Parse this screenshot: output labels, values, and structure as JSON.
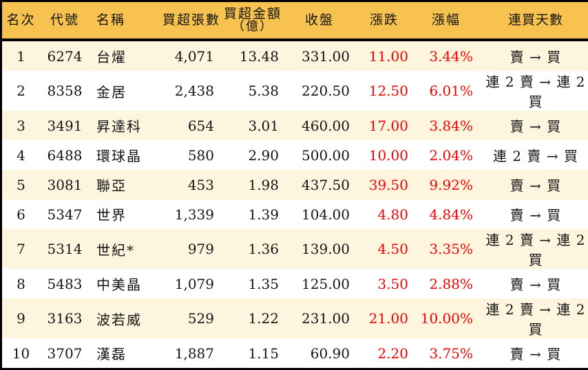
{
  "colors": {
    "header_bg": "#F7C24F",
    "row_alt_bg": "#FDF5DE",
    "row_bg": "#FFFFFF",
    "border": "#000000",
    "text": "#141414",
    "up_red": "#F40000"
  },
  "chart_data": {
    "type": "table",
    "title": "",
    "columns": [
      {
        "key": "rank",
        "label": "名次"
      },
      {
        "key": "code",
        "label": "代號"
      },
      {
        "key": "name",
        "label": "名稱"
      },
      {
        "key": "net_buy_volume",
        "label": "買超張數"
      },
      {
        "key": "net_buy_amount",
        "label": "買超金額",
        "sub": "（億）"
      },
      {
        "key": "close",
        "label": "收盤"
      },
      {
        "key": "change",
        "label": "漲跌"
      },
      {
        "key": "change_pct",
        "label": "漲幅"
      },
      {
        "key": "streak",
        "label": "連買天數"
      }
    ],
    "rows": [
      [
        "1",
        "6274",
        "台燿",
        "4,071",
        "13.48",
        "331.00",
        "11.00",
        "3.44%",
        "賣 → 買"
      ],
      [
        "2",
        "8358",
        "金居",
        "2,438",
        "5.38",
        "220.50",
        "12.50",
        "6.01%",
        "連 2 賣 → 連 2 買"
      ],
      [
        "3",
        "3491",
        "昇達科",
        "654",
        "3.01",
        "460.00",
        "17.00",
        "3.84%",
        "賣 → 買"
      ],
      [
        "4",
        "6488",
        "環球晶",
        "580",
        "2.90",
        "500.00",
        "10.00",
        "2.04%",
        "連 2 賣 → 買"
      ],
      [
        "5",
        "3081",
        "聯亞",
        "453",
        "1.98",
        "437.50",
        "39.50",
        "9.92%",
        "賣 → 買"
      ],
      [
        "6",
        "5347",
        "世界",
        "1,339",
        "1.39",
        "104.00",
        "4.80",
        "4.84%",
        "賣 → 買"
      ],
      [
        "7",
        "5314",
        "世紀*",
        "979",
        "1.36",
        "139.00",
        "4.50",
        "3.35%",
        "連 2 賣 → 連 2 買"
      ],
      [
        "8",
        "5483",
        "中美晶",
        "1,079",
        "1.35",
        "125.00",
        "3.50",
        "2.88%",
        "賣 → 買"
      ],
      [
        "9",
        "3163",
        "波若威",
        "529",
        "1.22",
        "231.00",
        "21.00",
        "10.00%",
        "連 2 賣 → 連 2 買"
      ],
      [
        "10",
        "3707",
        "漢磊",
        "1,887",
        "1.15",
        "60.90",
        "2.20",
        "3.75%",
        "賣 → 買"
      ]
    ]
  }
}
